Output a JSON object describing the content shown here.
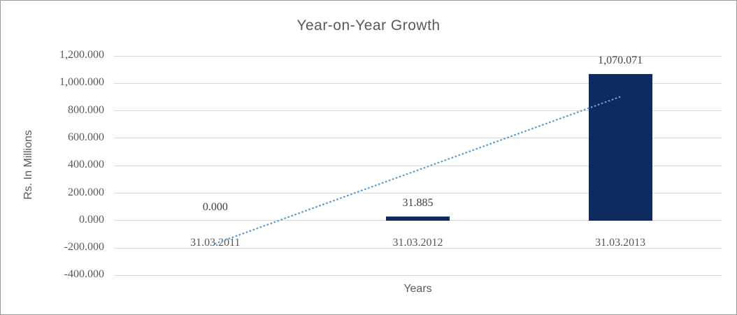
{
  "chart_data": {
    "type": "bar",
    "title": "Year-on-Year Growth",
    "xlabel": "Years",
    "ylabel": "Rs. In Millions",
    "categories": [
      "31.03.2011",
      "31.03.2012",
      "31.03.2013"
    ],
    "values": [
      0,
      31.885,
      1070.071
    ],
    "data_labels": [
      "0.000",
      "31.885",
      "1,070.071"
    ],
    "ylim": [
      -400,
      1200
    ],
    "ytick_step": 200,
    "yticks": [
      {
        "value": 1200,
        "label": "1,200.000"
      },
      {
        "value": 1000,
        "label": "1,000.000"
      },
      {
        "value": 800,
        "label": "800.000"
      },
      {
        "value": 600,
        "label": "600.000"
      },
      {
        "value": 400,
        "label": "400.000"
      },
      {
        "value": 200,
        "label": "200.000"
      },
      {
        "value": 0,
        "label": "0.000"
      },
      {
        "value": -200,
        "label": "-200.000"
      },
      {
        "value": -400,
        "label": "-400.000"
      }
    ],
    "grid": true,
    "legend": "none",
    "trendline": {
      "type": "linear",
      "style": "dotted"
    },
    "colors": {
      "bar": "#0e2a5e",
      "trendline": "#5b9bd5",
      "gridline": "#d9d9d9",
      "axis_text": "#595959",
      "data_label_text": "#404040",
      "title_text": "#595959",
      "background": "#ffffff"
    }
  }
}
